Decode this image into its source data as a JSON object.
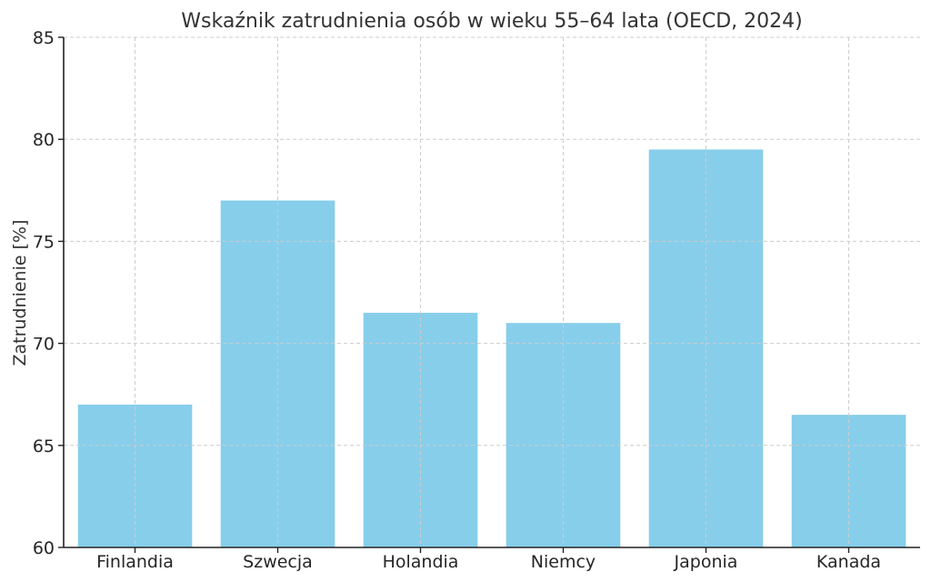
{
  "chart_data": {
    "type": "bar",
    "title": "Wskaźnik zatrudnienia osób w wieku 55–64 lata (OECD, 2024)",
    "xlabel": "",
    "ylabel": "Zatrudnienie [%]",
    "categories": [
      "Finlandia",
      "Szwecja",
      "Holandia",
      "Niemcy",
      "Japonia",
      "Kanada"
    ],
    "values": [
      67.0,
      77.0,
      71.5,
      71.0,
      79.5,
      66.5
    ],
    "ylim": [
      60,
      85
    ],
    "yticks": [
      60,
      65,
      70,
      75,
      80,
      85
    ],
    "bar_color": "#87ceeb",
    "grid": true,
    "legend": "none"
  }
}
